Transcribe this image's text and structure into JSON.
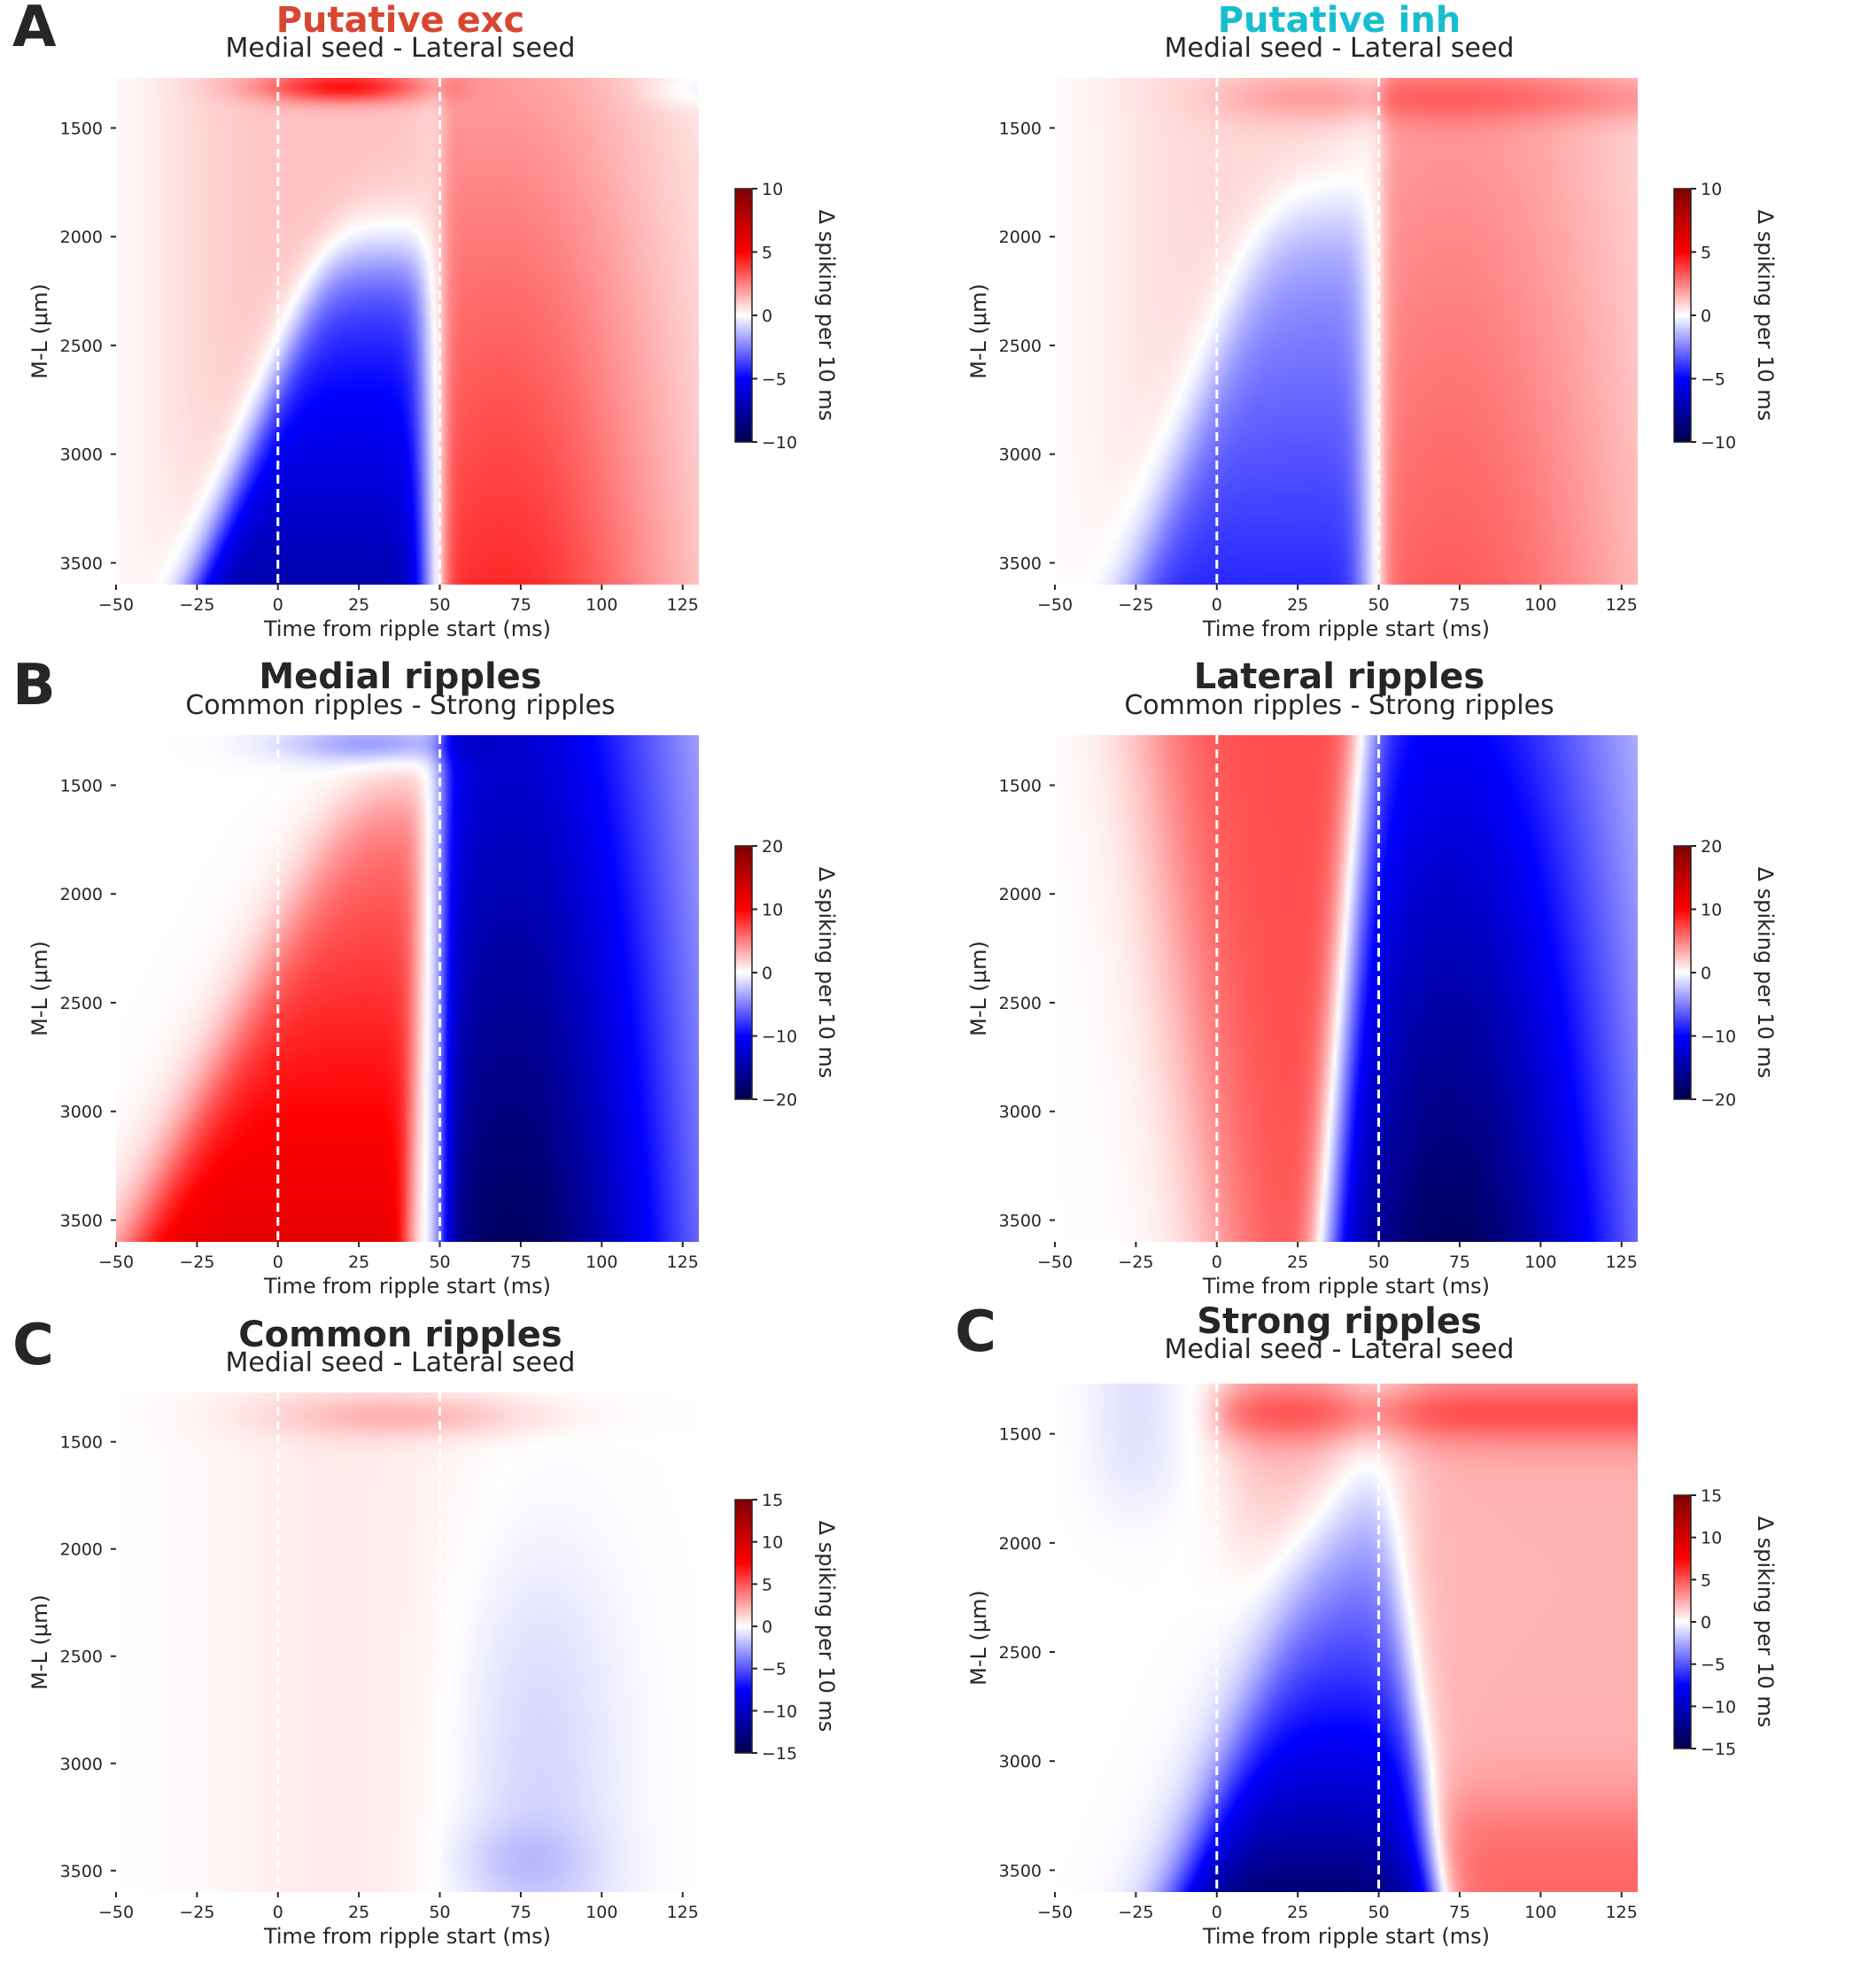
{
  "figure": {
    "x_axis_label": "Time from ripple start (ms)",
    "y_axis_label": "M-L (μm)",
    "colorbar_label": "Δ spiking per 10 ms",
    "colors": {
      "title_exc": "#d9462f",
      "title_inh": "#17becf",
      "text": "#262626"
    }
  },
  "chart_data": [
    {
      "type": "heatmap",
      "panel_letter": "A",
      "title": "Putative exc",
      "title_color": "#d9462f",
      "subtitle": "Medial seed - Lateral seed",
      "pattern": "exc",
      "xlim": [
        -50,
        130
      ],
      "ylim": [
        3600,
        1270
      ],
      "x_ticks": [
        -50,
        -25,
        0,
        25,
        50,
        75,
        100,
        125
      ],
      "y_ticks": [
        1500,
        2000,
        2500,
        3000,
        3500
      ],
      "vlines": [
        0,
        50
      ],
      "colorbar": {
        "min": -10,
        "max": 10,
        "ticks": [
          10,
          5,
          0,
          -5,
          -10
        ]
      },
      "colormap": "seismic"
    },
    {
      "type": "heatmap",
      "panel_letter": "",
      "title": "Putative inh",
      "title_color": "#17becf",
      "subtitle": "Medial seed - Lateral seed",
      "pattern": "inh",
      "xlim": [
        -50,
        130
      ],
      "ylim": [
        3600,
        1270
      ],
      "x_ticks": [
        -50,
        -25,
        0,
        25,
        50,
        75,
        100,
        125
      ],
      "y_ticks": [
        1500,
        2000,
        2500,
        3000,
        3500
      ],
      "vlines": [
        0,
        50
      ],
      "colorbar": {
        "min": -10,
        "max": 10,
        "ticks": [
          10,
          5,
          0,
          -5,
          -10
        ]
      },
      "colormap": "seismic"
    },
    {
      "type": "heatmap",
      "panel_letter": "B",
      "title": "Medial ripples",
      "title_color": "#262626",
      "subtitle": "Common ripples - Strong ripples",
      "pattern": "medial",
      "xlim": [
        -50,
        130
      ],
      "ylim": [
        3600,
        1270
      ],
      "x_ticks": [
        -50,
        -25,
        0,
        25,
        50,
        75,
        100,
        125
      ],
      "y_ticks": [
        1500,
        2000,
        2500,
        3000,
        3500
      ],
      "vlines": [
        0,
        50
      ],
      "colorbar": {
        "min": -20,
        "max": 20,
        "ticks": [
          20,
          10,
          0,
          -10,
          -20
        ]
      },
      "colormap": "seismic"
    },
    {
      "type": "heatmap",
      "panel_letter": "",
      "title": "Lateral ripples",
      "title_color": "#262626",
      "subtitle": "Common ripples - Strong ripples",
      "pattern": "lateral",
      "xlim": [
        -50,
        130
      ],
      "ylim": [
        3600,
        1270
      ],
      "x_ticks": [
        -50,
        -25,
        0,
        25,
        50,
        75,
        100,
        125
      ],
      "y_ticks": [
        1500,
        2000,
        2500,
        3000,
        3500
      ],
      "vlines": [
        0,
        50
      ],
      "colorbar": {
        "min": -20,
        "max": 20,
        "ticks": [
          20,
          10,
          0,
          -10,
          -20
        ]
      },
      "colormap": "seismic"
    },
    {
      "type": "heatmap",
      "panel_letter": "C",
      "title": "Common ripples",
      "title_color": "#262626",
      "subtitle": "Medial seed - Lateral seed",
      "pattern": "common",
      "xlim": [
        -50,
        130
      ],
      "ylim": [
        3600,
        1270
      ],
      "x_ticks": [
        -50,
        -25,
        0,
        25,
        50,
        75,
        100,
        125
      ],
      "y_ticks": [
        1500,
        2000,
        2500,
        3000,
        3500
      ],
      "vlines": [
        0,
        50
      ],
      "colorbar": {
        "min": -15,
        "max": 15,
        "ticks": [
          15,
          10,
          5,
          0,
          -5,
          -10,
          -15
        ]
      },
      "colormap": "seismic"
    },
    {
      "type": "heatmap",
      "panel_letter": "C",
      "title": "Strong ripples",
      "title_color": "#262626",
      "subtitle": "Medial seed - Lateral seed",
      "pattern": "strong",
      "xlim": [
        -50,
        130
      ],
      "ylim": [
        3600,
        1270
      ],
      "x_ticks": [
        -50,
        -25,
        0,
        25,
        50,
        75,
        100,
        125
      ],
      "y_ticks": [
        1500,
        2000,
        2500,
        3000,
        3500
      ],
      "vlines": [
        0,
        50
      ],
      "colorbar": {
        "min": -15,
        "max": 15,
        "ticks": [
          15,
          10,
          5,
          0,
          -5,
          -10,
          -15
        ]
      },
      "colormap": "seismic"
    }
  ]
}
